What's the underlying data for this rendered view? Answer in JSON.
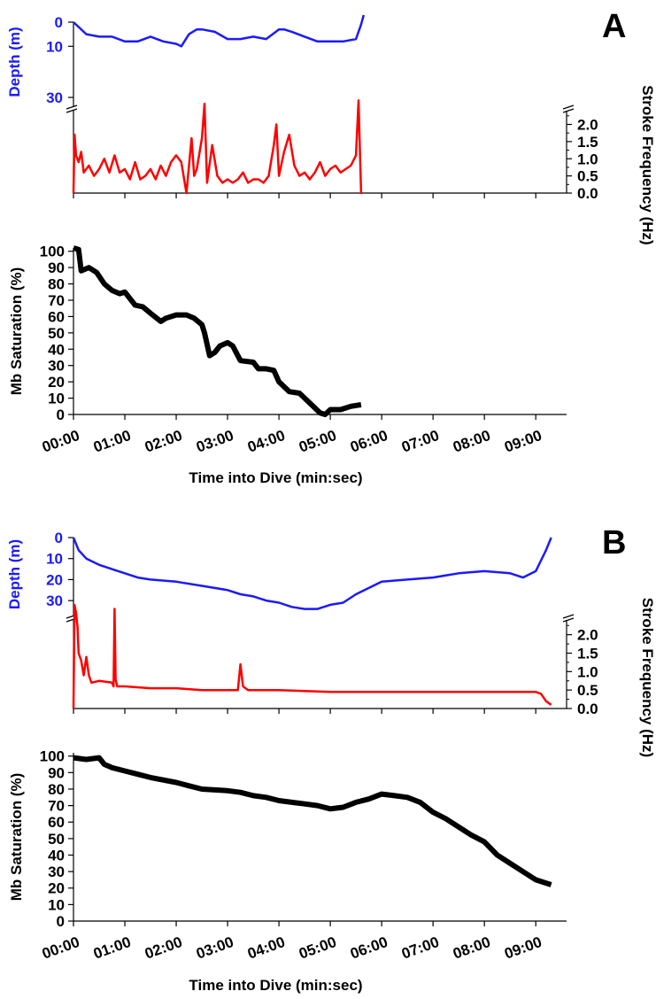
{
  "figure": {
    "panels": [
      {
        "label": "A",
        "depth_axis_title": "Depth (m)",
        "stroke_axis_title": "Stroke Frequency (Hz)",
        "mb_axis_title": "Mb Saturation (%)",
        "time_axis_title": "Time into Dive (min:sec)"
      },
      {
        "label": "B",
        "depth_axis_title": "Depth (m)",
        "stroke_axis_title": "Stroke Frequency (Hz)",
        "mb_axis_title": "Mb Saturation (%)",
        "time_axis_title": "Time into Dive (min:sec)"
      }
    ]
  },
  "chart_data": [
    {
      "panel": "A",
      "type": "line",
      "title": "Depth (m)",
      "ylabel": "Depth (m)",
      "yticks": [
        "0",
        "10",
        "30"
      ],
      "y_inverted": true,
      "color": "#1a1aff",
      "series": [
        {
          "values_note": "",
          "x_min": [
            0,
            0.25,
            0.5,
            0.75,
            1.0,
            1.25,
            1.5,
            1.75,
            2.0,
            2.1,
            2.25,
            2.4,
            2.5,
            2.75,
            3.0,
            3.25,
            3.5,
            3.75,
            4.0,
            4.1,
            4.25,
            4.5,
            4.75,
            5.0,
            5.25,
            5.5,
            5.6,
            5.65
          ],
          "y": [
            0,
            5,
            6,
            6,
            8,
            8,
            6,
            8,
            9,
            10,
            5,
            3,
            3,
            4,
            7,
            7,
            6,
            7,
            3,
            3,
            4,
            6,
            8,
            8,
            8,
            7,
            1,
            -2
          ]
        }
      ],
      "x_range": [
        0,
        9.6
      ],
      "y_range": [
        0,
        33
      ]
    },
    {
      "panel": "A",
      "type": "line",
      "title": "Stroke Frequency (Hz)",
      "ylabel": "Stroke Frequency (Hz)",
      "yticks": [
        "2.0",
        "1.5",
        "1.0",
        "0.5",
        "0.0"
      ],
      "color": "#ff0000",
      "series": [
        {
          "x_min": [
            0,
            0.02,
            0.05,
            0.1,
            0.15,
            0.2,
            0.3,
            0.4,
            0.5,
            0.6,
            0.7,
            0.8,
            0.9,
            1.0,
            1.1,
            1.2,
            1.3,
            1.4,
            1.5,
            1.6,
            1.7,
            1.8,
            1.9,
            2.0,
            2.1,
            2.2,
            2.3,
            2.35,
            2.4,
            2.5,
            2.55,
            2.6,
            2.7,
            2.8,
            2.9,
            3.0,
            3.1,
            3.2,
            3.3,
            3.4,
            3.5,
            3.6,
            3.7,
            3.8,
            3.9,
            3.95,
            4.0,
            4.1,
            4.2,
            4.3,
            4.4,
            4.5,
            4.6,
            4.7,
            4.8,
            4.9,
            5.0,
            5.1,
            5.2,
            5.3,
            5.4,
            5.5,
            5.55,
            5.6,
            5.62
          ],
          "y": [
            0,
            1.7,
            1.1,
            0.9,
            1.2,
            0.6,
            0.8,
            0.5,
            0.7,
            1.0,
            0.6,
            1.1,
            0.6,
            0.7,
            0.4,
            0.9,
            0.4,
            0.5,
            0.7,
            0.4,
            0.8,
            0.5,
            0.9,
            1.1,
            0.9,
            0.0,
            1.6,
            0.5,
            0.7,
            1.6,
            2.6,
            0.3,
            1.4,
            0.5,
            0.3,
            0.4,
            0.3,
            0.4,
            0.6,
            0.3,
            0.4,
            0.4,
            0.3,
            0.5,
            1.4,
            2.0,
            0.5,
            1.2,
            1.7,
            0.8,
            0.5,
            0.6,
            0.4,
            0.6,
            0.9,
            0.5,
            0.7,
            0.8,
            0.6,
            0.7,
            0.8,
            1.1,
            2.7,
            0.0,
            0.0
          ]
        }
      ],
      "x_range": [
        0,
        9.6
      ],
      "y_range": [
        0,
        2.4
      ]
    },
    {
      "panel": "A",
      "type": "line",
      "title": "Mb Saturation (%)",
      "ylabel": "Mb Saturation (%)",
      "xlabel": "Time into Dive (min:sec)",
      "yticks": [
        "100",
        "90",
        "80",
        "70",
        "60",
        "50",
        "40",
        "30",
        "20",
        "10",
        "0"
      ],
      "xticks": [
        "00:00",
        "01:00",
        "02:00",
        "03:00",
        "04:00",
        "05:00",
        "06:00",
        "07:00",
        "08:00",
        "09:00"
      ],
      "color": "#000000",
      "series": [
        {
          "x_min": [
            0,
            0.1,
            0.15,
            0.3,
            0.45,
            0.6,
            0.75,
            0.9,
            1.0,
            1.1,
            1.2,
            1.35,
            1.5,
            1.7,
            1.8,
            2.0,
            2.2,
            2.35,
            2.5,
            2.55,
            2.65,
            2.75,
            2.85,
            3.0,
            3.1,
            3.25,
            3.5,
            3.6,
            3.75,
            3.9,
            4.0,
            4.2,
            4.4,
            4.6,
            4.8,
            4.9,
            5.0,
            5.2,
            5.4,
            5.6
          ],
          "y": [
            102,
            101,
            88,
            90,
            87,
            80,
            76,
            74,
            75,
            71,
            67,
            66,
            62,
            57,
            59,
            61,
            61,
            59,
            55,
            50,
            36,
            38,
            42,
            44,
            42,
            33,
            32,
            28,
            28,
            27,
            20,
            14,
            13,
            7,
            1,
            0,
            3,
            3,
            5,
            6
          ]
        }
      ],
      "x_range": [
        0,
        9.6
      ],
      "y_range": [
        0,
        102
      ]
    },
    {
      "panel": "B",
      "type": "line",
      "title": "Depth (m)",
      "ylabel": "Depth (m)",
      "yticks": [
        "0",
        "10",
        "20",
        "30"
      ],
      "y_inverted": true,
      "color": "#1a1aff",
      "series": [
        {
          "x_min": [
            0,
            0.1,
            0.25,
            0.5,
            0.75,
            1.0,
            1.25,
            1.5,
            2.0,
            2.5,
            3.0,
            3.25,
            3.5,
            3.75,
            4.0,
            4.25,
            4.5,
            4.75,
            5.0,
            5.25,
            5.5,
            5.75,
            6.0,
            6.5,
            7.0,
            7.5,
            8.0,
            8.5,
            8.75,
            9.0,
            9.1,
            9.2,
            9.3
          ],
          "y": [
            0,
            6,
            10,
            13,
            15,
            17,
            19,
            20,
            21,
            23,
            25,
            27,
            28,
            30,
            31,
            33,
            34,
            34,
            32,
            31,
            27,
            24,
            21,
            20,
            19,
            17,
            16,
            17,
            19,
            16,
            11,
            6,
            0
          ]
        }
      ],
      "x_range": [
        0,
        9.3
      ],
      "y_range": [
        0,
        35
      ]
    },
    {
      "panel": "B",
      "type": "line",
      "title": "Stroke Frequency (Hz)",
      "ylabel": "Stroke Frequency (Hz)",
      "yticks": [
        "2.0",
        "1.5",
        "1.0",
        "0.5",
        "0.0"
      ],
      "color": "#ff0000",
      "series": [
        {
          "x_min": [
            0,
            0.02,
            0.05,
            0.08,
            0.1,
            0.15,
            0.2,
            0.25,
            0.3,
            0.35,
            0.5,
            0.75,
            0.78,
            0.8,
            0.82,
            0.85,
            1.0,
            1.5,
            2.0,
            2.5,
            3.0,
            3.2,
            3.25,
            3.3,
            3.4,
            3.5,
            4.0,
            5.0,
            6.0,
            7.0,
            8.0,
            9.0,
            9.1,
            9.2,
            9.3
          ],
          "y": [
            0,
            2.8,
            2.6,
            2.2,
            1.5,
            1.3,
            0.9,
            1.4,
            0.9,
            0.7,
            0.75,
            0.7,
            0.6,
            2.7,
            0.8,
            0.6,
            0.6,
            0.55,
            0.55,
            0.5,
            0.5,
            0.5,
            1.2,
            0.6,
            0.5,
            0.5,
            0.5,
            0.45,
            0.45,
            0.45,
            0.45,
            0.45,
            0.4,
            0.2,
            0.1
          ]
        }
      ],
      "x_range": [
        0,
        9.3
      ],
      "y_range": [
        0,
        2.4
      ]
    },
    {
      "panel": "B",
      "type": "line",
      "title": "Mb Saturation (%)",
      "ylabel": "Mb Saturation (%)",
      "xlabel": "Time into Dive (min:sec)",
      "yticks": [
        "100",
        "90",
        "80",
        "70",
        "60",
        "50",
        "40",
        "30",
        "20",
        "10",
        "0"
      ],
      "xticks": [
        "00:00",
        "01:00",
        "02:00",
        "03:00",
        "04:00",
        "05:00",
        "06:00",
        "07:00",
        "08:00",
        "09:00"
      ],
      "color": "#000000",
      "series": [
        {
          "x_min": [
            0,
            0.25,
            0.5,
            0.6,
            0.75,
            1.0,
            1.25,
            1.5,
            2.0,
            2.25,
            2.5,
            3.0,
            3.25,
            3.5,
            3.75,
            4.0,
            4.25,
            4.5,
            4.75,
            5.0,
            5.25,
            5.5,
            5.75,
            6.0,
            6.25,
            6.5,
            6.75,
            7.0,
            7.25,
            7.5,
            7.75,
            8.0,
            8.25,
            8.5,
            8.75,
            9.0,
            9.3
          ],
          "y": [
            99,
            98,
            99,
            95,
            93,
            91,
            89,
            87,
            84,
            82,
            80,
            79,
            78,
            76,
            75,
            73,
            72,
            71,
            70,
            68,
            69,
            72,
            74,
            77,
            76,
            75,
            72,
            66,
            62,
            57,
            52,
            48,
            40,
            35,
            30,
            25,
            22
          ]
        }
      ],
      "x_range": [
        0,
        9.3
      ],
      "y_range": [
        0,
        102
      ]
    }
  ]
}
